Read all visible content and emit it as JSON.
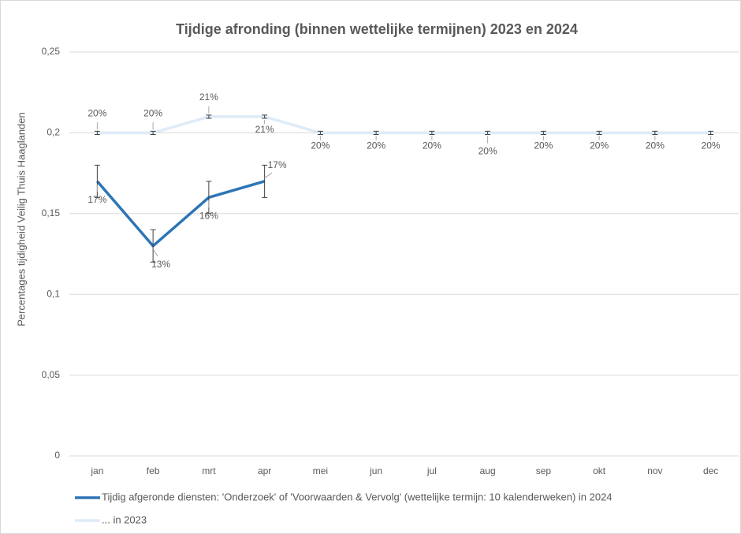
{
  "chart_data": {
    "type": "line",
    "title": "Tijdige afronding (binnen wettelijke termijnen) 2023 en 2024",
    "y_label": "Percentages tijdigheid Veilig Thuis Haaglanden",
    "categories": [
      "jan",
      "feb",
      "mrt",
      "apr",
      "mei",
      "jun",
      "jul",
      "aug",
      "sep",
      "okt",
      "nov",
      "dec"
    ],
    "series": [
      {
        "name": "Tijdig afgeronde diensten: 'Onderzoek' of 'Voorwaarden & Vervolg' (wettelijke termijn: 10 kalenderweken) in 2024",
        "color": "#2e75b6",
        "values": [
          0.17,
          0.13,
          0.16,
          0.17,
          null,
          null,
          null,
          null,
          null,
          null,
          null,
          null
        ],
        "value_labels": [
          "17%",
          "13%",
          "16%",
          "17%",
          null,
          null,
          null,
          null,
          null,
          null,
          null,
          null
        ],
        "errors": [
          0.01,
          0.01,
          0.01,
          0.01,
          null,
          null,
          null,
          null,
          null,
          null,
          null,
          null
        ]
      },
      {
        "name": "... in 2023",
        "color": "#deebf7",
        "values": [
          0.2,
          0.2,
          0.21,
          0.21,
          0.2,
          0.2,
          0.2,
          0.2,
          0.2,
          0.2,
          0.2,
          0.2
        ],
        "value_labels": [
          "20%",
          "20%",
          "21%",
          "21%",
          "20%",
          "20%",
          "20%",
          "20%",
          "20%",
          "20%",
          "20%",
          "20%"
        ],
        "errors": [
          0.001,
          0.001,
          0.001,
          0.001,
          0.001,
          0.001,
          0.001,
          0.001,
          0.001,
          0.001,
          0.001,
          0.001
        ]
      }
    ],
    "ylim": [
      0,
      0.25
    ],
    "yticks": [
      0,
      {
        "value": 0.05,
        "label": "0,05"
      },
      {
        "value": 0.1,
        "label": "0,1"
      },
      {
        "value": 0.15,
        "label": "0,15"
      },
      {
        "value": 0.2,
        "label": "0,2"
      },
      {
        "value": 0.25,
        "label": "0,25"
      }
    ],
    "grid": true
  }
}
